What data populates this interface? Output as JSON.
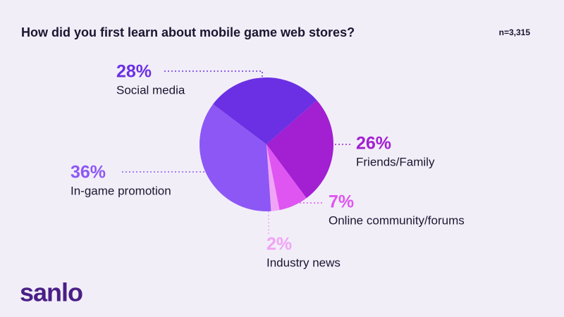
{
  "chart_data": {
    "type": "pie",
    "title": "How did you first learn about mobile game web stores?",
    "note": "n=3,315",
    "logo": "sanlo",
    "categories": [
      "Social media",
      "Friends/Family",
      "Online community/forums",
      "Industry news",
      "In-game promotion"
    ],
    "values": [
      28,
      26,
      7,
      2,
      36
    ],
    "value_labels": [
      "28%",
      "26%",
      "7%",
      "2%",
      "36%"
    ],
    "colors": [
      "#6b30e3",
      "#a21fd2",
      "#df55f2",
      "#f1a4f5",
      "#8d57f6"
    ]
  }
}
